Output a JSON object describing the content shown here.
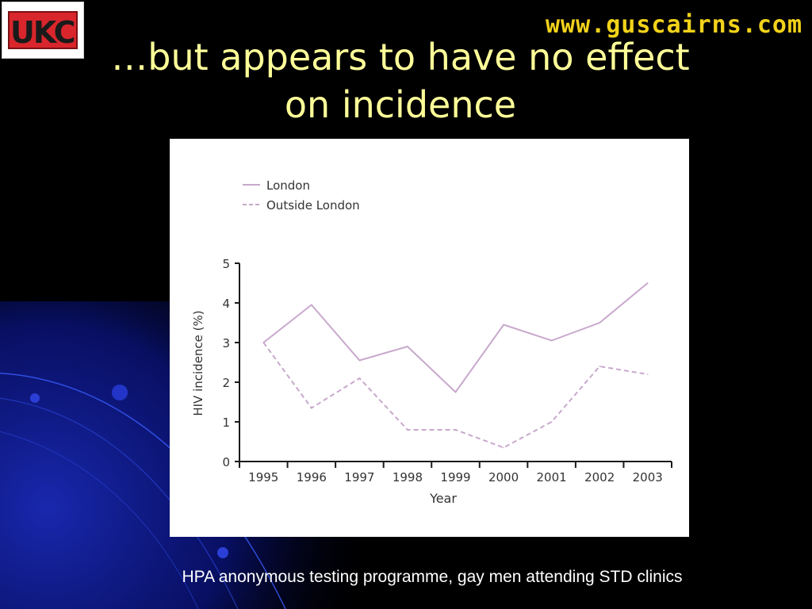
{
  "slide": {
    "logo_text": "UKC",
    "website": "www.guscairns.com",
    "title_line1": "…but appears to have no effect",
    "title_line2": "on incidence",
    "caption": "HPA anonymous testing programme, gay men attending STD clinics",
    "colors": {
      "title": "#ffff99",
      "website": "#f2d21a",
      "background": "#000000",
      "logo_red": "#d8262c"
    }
  },
  "chart_data": {
    "type": "line",
    "title": "",
    "xlabel": "Year",
    "ylabel": "HIV incidence (%)",
    "categories": [
      "1995",
      "1996",
      "1997",
      "1998",
      "1999",
      "2000",
      "2001",
      "2002",
      "2003"
    ],
    "yticks": [
      "0",
      "1",
      "2",
      "3",
      "4",
      "5"
    ],
    "ylim": [
      0,
      5
    ],
    "grid": false,
    "legend_position": "top-left",
    "series": [
      {
        "name": "London",
        "style": "solid",
        "color": "#c8a8cc",
        "values": [
          3.0,
          3.95,
          2.55,
          2.9,
          1.75,
          3.45,
          3.05,
          3.5,
          4.5
        ]
      },
      {
        "name": "Outside London",
        "style": "dashed",
        "color": "#c8a8cc",
        "values": [
          3.0,
          1.35,
          2.1,
          0.8,
          0.8,
          0.35,
          1.0,
          2.4,
          2.2
        ]
      }
    ]
  }
}
